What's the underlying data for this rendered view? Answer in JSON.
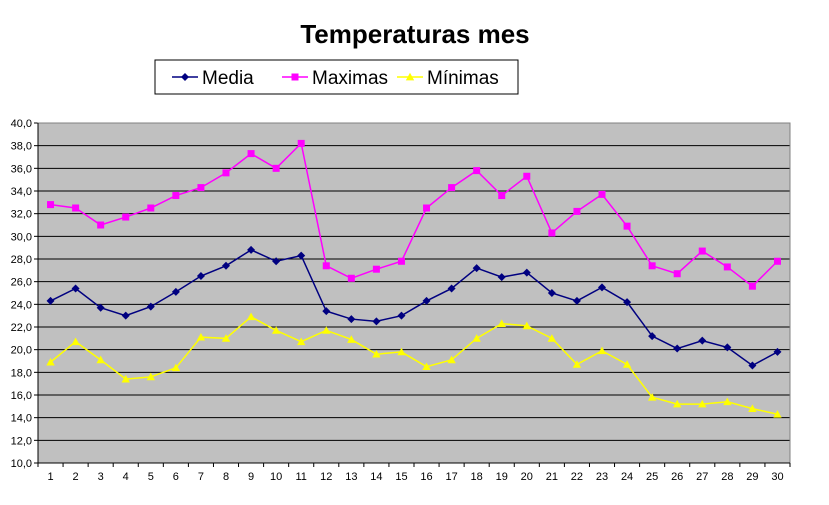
{
  "chart_data": {
    "type": "line",
    "title": "Temperaturas mes",
    "xlabel": "",
    "ylabel": "",
    "x": [
      1,
      2,
      3,
      4,
      5,
      6,
      7,
      8,
      9,
      10,
      11,
      12,
      13,
      14,
      15,
      16,
      17,
      18,
      19,
      20,
      21,
      22,
      23,
      24,
      25,
      26,
      27,
      28,
      29,
      30
    ],
    "ylim": [
      10,
      40
    ],
    "yticks": [
      "10,0",
      "12,0",
      "14,0",
      "16,0",
      "18,0",
      "20,0",
      "22,0",
      "24,0",
      "26,0",
      "28,0",
      "30,0",
      "32,0",
      "34,0",
      "36,0",
      "38,0",
      "40,0"
    ],
    "grid": true,
    "plot_background": "#c0c0c0",
    "legend_position": "top",
    "series": [
      {
        "name": "Media",
        "color": "#000080",
        "marker": "diamond",
        "values": [
          24.3,
          25.4,
          23.7,
          23.0,
          23.8,
          25.1,
          26.5,
          27.4,
          28.8,
          27.8,
          28.3,
          23.4,
          22.7,
          22.5,
          23.0,
          24.3,
          25.4,
          27.2,
          26.4,
          26.8,
          25.0,
          24.3,
          25.5,
          24.2,
          21.2,
          20.1,
          20.8,
          20.2,
          18.6,
          19.8
        ]
      },
      {
        "name": "Maximas",
        "color": "#ff00ff",
        "marker": "square",
        "values": [
          32.8,
          32.5,
          31.0,
          31.7,
          32.5,
          33.6,
          34.3,
          35.6,
          37.3,
          36.0,
          38.2,
          27.4,
          26.3,
          27.1,
          27.8,
          32.5,
          34.3,
          35.8,
          33.6,
          35.3,
          30.3,
          32.2,
          33.7,
          30.9,
          27.4,
          26.7,
          28.7,
          27.3,
          25.6,
          27.8
        ]
      },
      {
        "name": "Mínimas",
        "color": "#ffff00",
        "marker": "triangle",
        "values": [
          18.9,
          20.7,
          19.1,
          17.4,
          17.6,
          18.4,
          21.1,
          21.0,
          22.9,
          21.7,
          20.7,
          21.7,
          20.9,
          19.6,
          19.8,
          18.5,
          19.1,
          21.0,
          22.3,
          22.1,
          21.0,
          18.7,
          19.9,
          18.7,
          15.8,
          15.2,
          15.2,
          15.4,
          14.8,
          14.3
        ]
      }
    ]
  }
}
